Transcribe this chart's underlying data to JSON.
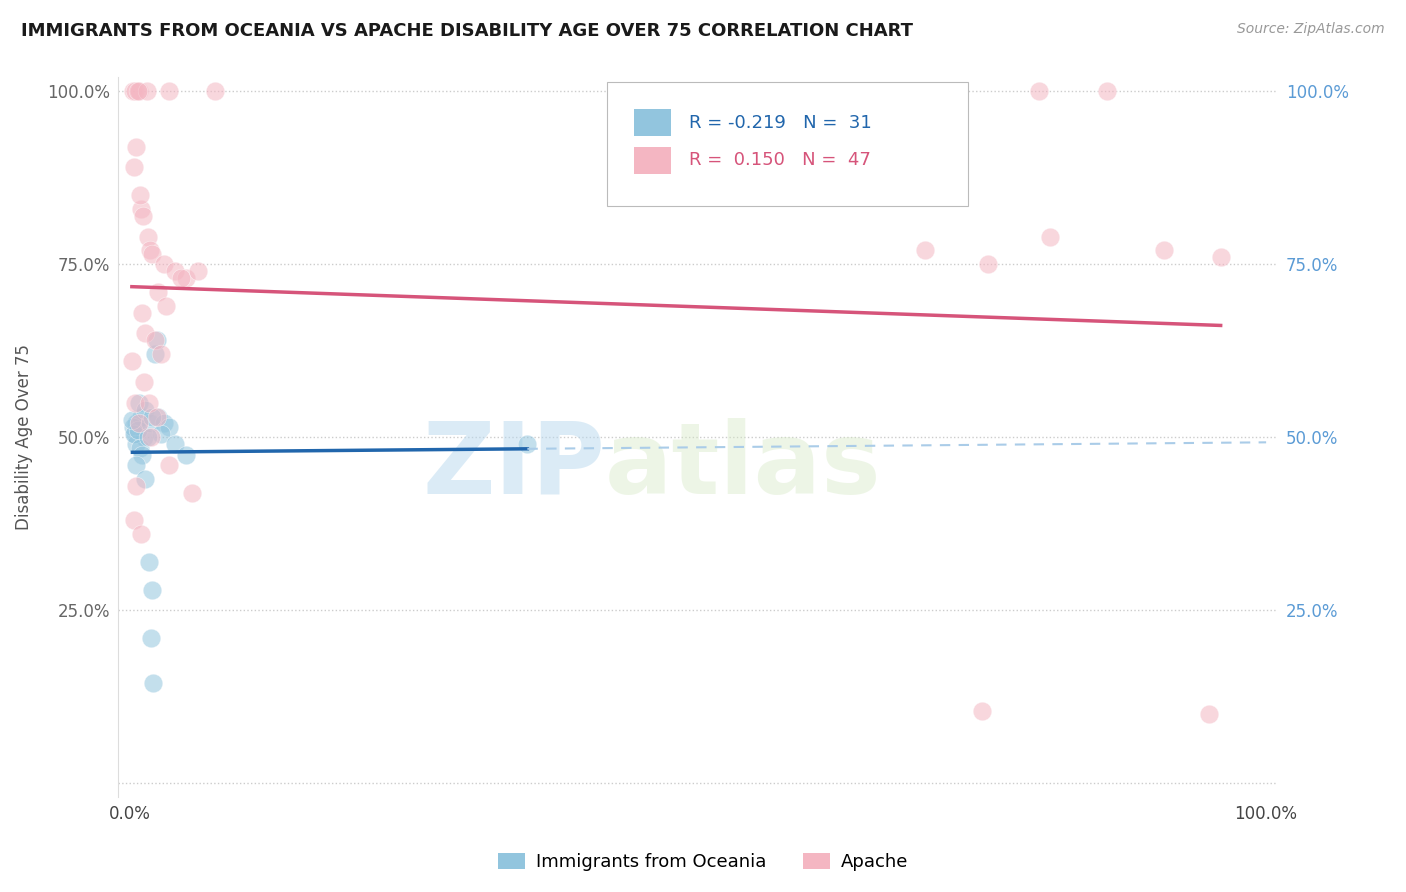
{
  "title": "IMMIGRANTS FROM OCEANIA VS APACHE DISABILITY AGE OVER 75 CORRELATION CHART",
  "source": "Source: ZipAtlas.com",
  "ylabel": "Disability Age Over 75",
  "R1": -0.219,
  "N1": 31,
  "R2": 0.15,
  "N2": 47,
  "color_blue": "#92c5de",
  "color_pink": "#f4b6c2",
  "color_line_blue": "#2166ac",
  "color_line_pink": "#d6547a",
  "color_dashed_blue": "#aacce8",
  "watermark_zip": "ZIP",
  "watermark_atlas": "atlas",
  "legend_label1": "Immigrants from Oceania",
  "legend_label2": "Apache",
  "blue_points": [
    [
      0.5,
      50.5
    ],
    [
      0.6,
      52.0
    ],
    [
      1.0,
      53.0
    ],
    [
      0.8,
      55.0
    ],
    [
      1.3,
      50.0
    ],
    [
      0.3,
      51.5
    ],
    [
      0.55,
      49.0
    ],
    [
      0.35,
      50.5
    ],
    [
      0.7,
      51.0
    ],
    [
      0.9,
      48.5
    ],
    [
      1.1,
      47.5
    ],
    [
      0.25,
      52.5
    ],
    [
      1.4,
      54.0
    ],
    [
      0.6,
      46.0
    ],
    [
      1.8,
      52.0
    ],
    [
      2.5,
      53.0
    ],
    [
      3.0,
      52.0
    ],
    [
      3.5,
      51.5
    ],
    [
      2.0,
      53.0
    ],
    [
      2.8,
      50.5
    ],
    [
      1.6,
      50.0
    ],
    [
      1.4,
      44.0
    ],
    [
      4.0,
      49.0
    ],
    [
      5.0,
      47.5
    ],
    [
      1.7,
      32.0
    ],
    [
      2.0,
      28.0
    ],
    [
      1.9,
      21.0
    ],
    [
      2.1,
      14.5
    ],
    [
      2.2,
      62.0
    ],
    [
      2.4,
      64.0
    ],
    [
      35.0,
      49.0
    ]
  ],
  "pink_points": [
    [
      0.3,
      100.0
    ],
    [
      0.5,
      100.0
    ],
    [
      0.8,
      100.0
    ],
    [
      1.5,
      100.0
    ],
    [
      3.5,
      100.0
    ],
    [
      0.7,
      100.0
    ],
    [
      7.5,
      100.0
    ],
    [
      80.0,
      100.0
    ],
    [
      86.0,
      100.0
    ],
    [
      0.4,
      89.0
    ],
    [
      1.0,
      83.0
    ],
    [
      1.2,
      82.0
    ],
    [
      1.6,
      79.0
    ],
    [
      1.8,
      77.0
    ],
    [
      2.0,
      76.5
    ],
    [
      3.0,
      75.0
    ],
    [
      4.0,
      74.0
    ],
    [
      5.0,
      73.0
    ],
    [
      0.6,
      92.0
    ],
    [
      0.9,
      85.0
    ],
    [
      2.5,
      71.0
    ],
    [
      3.2,
      69.0
    ],
    [
      1.1,
      68.0
    ],
    [
      1.4,
      65.0
    ],
    [
      2.2,
      64.0
    ],
    [
      2.8,
      62.0
    ],
    [
      0.2,
      61.0
    ],
    [
      1.3,
      58.0
    ],
    [
      0.5,
      55.0
    ],
    [
      1.7,
      55.0
    ],
    [
      2.4,
      53.0
    ],
    [
      0.8,
      52.0
    ],
    [
      1.9,
      50.0
    ],
    [
      3.5,
      46.0
    ],
    [
      0.6,
      43.0
    ],
    [
      5.5,
      42.0
    ],
    [
      0.4,
      38.0
    ],
    [
      1.0,
      36.0
    ],
    [
      75.0,
      10.5
    ],
    [
      95.0,
      10.0
    ],
    [
      4.5,
      73.0
    ],
    [
      6.0,
      74.0
    ],
    [
      70.0,
      77.0
    ],
    [
      75.5,
      75.0
    ],
    [
      81.0,
      79.0
    ],
    [
      91.0,
      77.0
    ],
    [
      96.0,
      76.0
    ]
  ]
}
